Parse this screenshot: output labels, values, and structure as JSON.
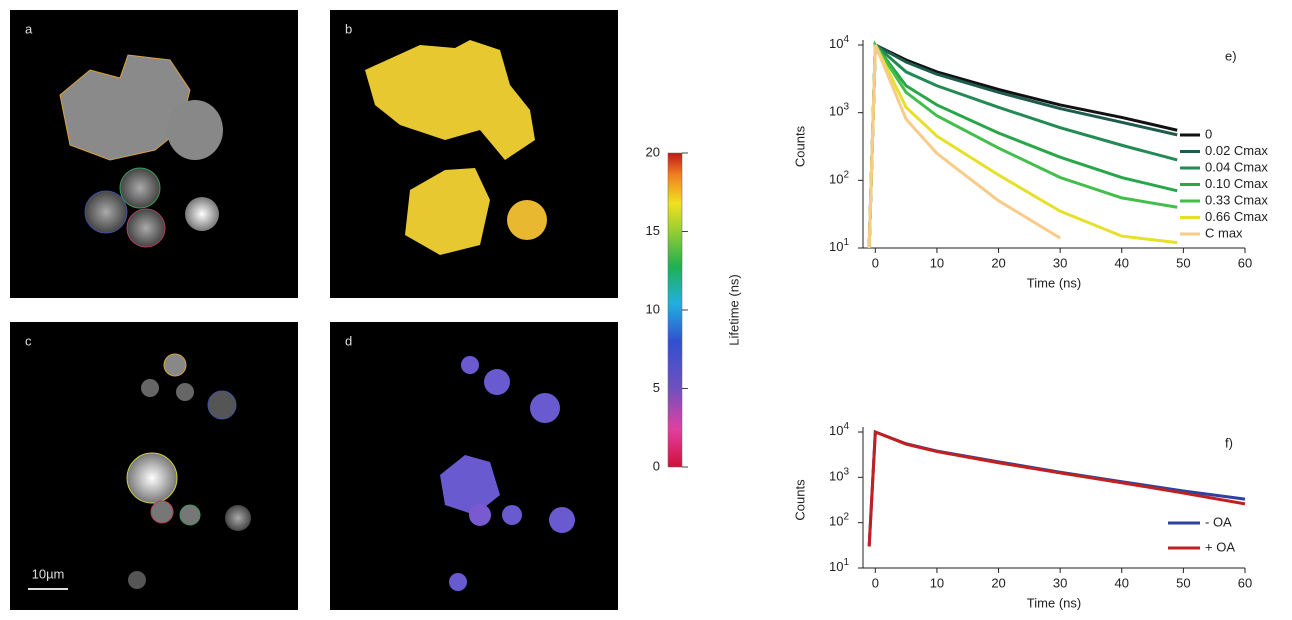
{
  "panels": {
    "a": "a",
    "b": "b",
    "c": "c",
    "d": "d",
    "scale_bar": "10µm"
  },
  "colorbar": {
    "label": "Lifetime (ns)",
    "ylim": [
      0,
      20
    ],
    "yticks": [
      0,
      5,
      10,
      15,
      20
    ]
  },
  "chart_data": [
    {
      "type": "line",
      "panel_label": "e)",
      "xlabel": "Time (ns)",
      "ylabel": "Counts",
      "log_y": true,
      "legend": "right",
      "xlim": [
        -2,
        60
      ],
      "ylim": [
        10,
        10000
      ],
      "xticks": [
        0,
        10,
        20,
        30,
        40,
        50,
        60
      ],
      "yticks": [
        {
          "value": 10,
          "label": "10",
          "exponent": "1"
        },
        {
          "value": 100,
          "label": "10",
          "exponent": "2"
        },
        {
          "value": 1000,
          "label": "10",
          "exponent": "3"
        },
        {
          "value": 10000,
          "label": "10",
          "exponent": "4"
        }
      ],
      "x": [
        -1,
        0,
        5,
        10,
        20,
        30,
        40,
        49
      ],
      "series": [
        {
          "name": "0",
          "color": "#111111",
          "values": [
            10,
            10000,
            6000,
            4000,
            2200,
            1300,
            850,
            550
          ]
        },
        {
          "name": "0.02 Cmax",
          "color": "#1d5c4c",
          "values": [
            10,
            10000,
            5600,
            3700,
            2000,
            1150,
            720,
            470
          ]
        },
        {
          "name": "0.04 Cmax",
          "color": "#238a55",
          "values": [
            10,
            10000,
            4000,
            2500,
            1200,
            600,
            330,
            200
          ]
        },
        {
          "name": "0.10 Cmax",
          "color": "#2aa64a",
          "values": [
            10,
            10000,
            2500,
            1300,
            500,
            220,
            110,
            70
          ]
        },
        {
          "name": "0.33 Cmax",
          "color": "#42be4a",
          "values": [
            10,
            10000,
            2000,
            900,
            300,
            110,
            55,
            40
          ]
        },
        {
          "name": "0.66 Cmax",
          "color": "#e6e02a",
          "values": [
            10,
            10000,
            1200,
            450,
            120,
            35,
            15,
            12
          ]
        },
        {
          "name": "C max",
          "color": "#f8cc88",
          "values": [
            10,
            10000,
            800,
            250,
            50,
            14,
            null,
            null
          ]
        }
      ]
    },
    {
      "type": "line",
      "panel_label": "f)",
      "xlabel": "Time (ns)",
      "ylabel": "Counts",
      "log_y": true,
      "legend": "lower right",
      "xlim": [
        -2,
        60
      ],
      "ylim": [
        10,
        10000
      ],
      "xticks": [
        0,
        10,
        20,
        30,
        40,
        50,
        60
      ],
      "yticks": [
        {
          "value": 10,
          "label": "10",
          "exponent": "1"
        },
        {
          "value": 100,
          "label": "10",
          "exponent": "2"
        },
        {
          "value": 1000,
          "label": "10",
          "exponent": "3"
        },
        {
          "value": 10000,
          "label": "10",
          "exponent": "4"
        }
      ],
      "x": [
        -1,
        0,
        5,
        10,
        20,
        30,
        40,
        50,
        60
      ],
      "series": [
        {
          "name": "- OA",
          "color": "#3040a0",
          "values": [
            30,
            10000,
            5500,
            3800,
            2200,
            1300,
            800,
            500,
            330
          ]
        },
        {
          "name": "+ OA",
          "color": "#c02020",
          "values": [
            30,
            10000,
            5400,
            3700,
            2100,
            1250,
            760,
            450,
            260
          ]
        }
      ]
    }
  ]
}
